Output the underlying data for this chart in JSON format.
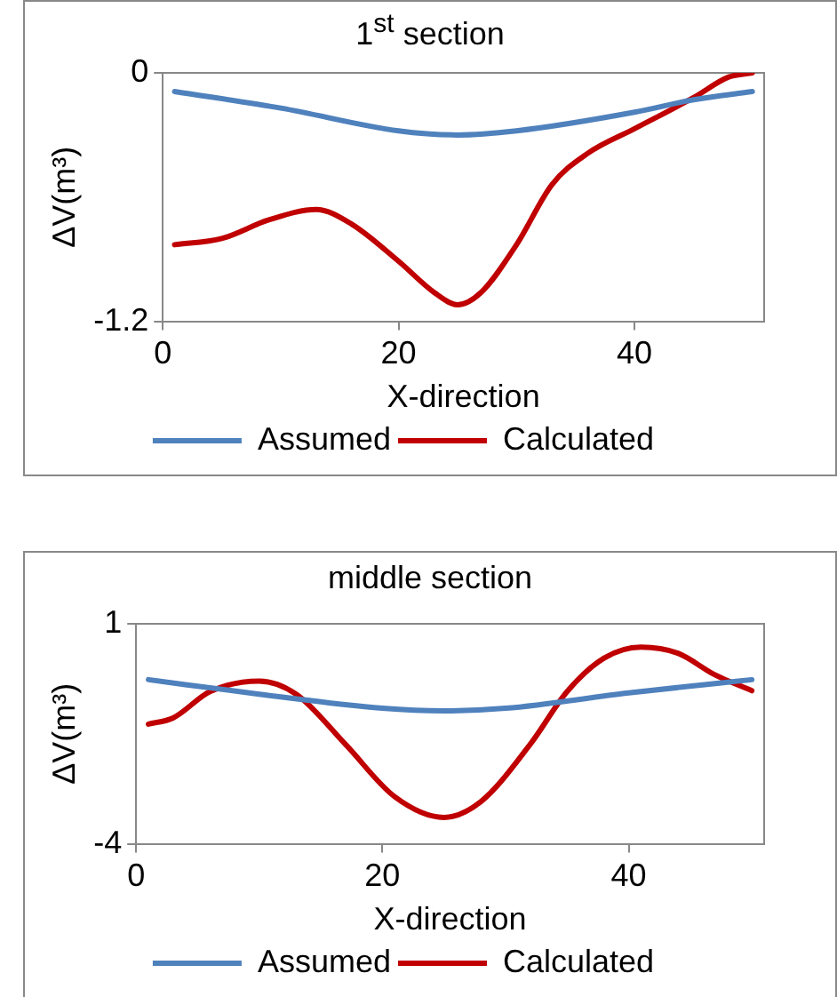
{
  "chart_data": [
    {
      "type": "line",
      "title": "1$^{st}$ section",
      "xlabel": "X-direction",
      "ylabel": "ΔV(m³)",
      "xlim": [
        0,
        51
      ],
      "xticks": [
        0,
        20,
        40
      ],
      "ylim": [
        -1.2,
        0
      ],
      "yticks": [
        -1.2,
        0
      ],
      "grid": false,
      "legend": "bottom",
      "marker": "none",
      "line_style": "solid",
      "series": [
        {
          "name": "Assumed",
          "color": "#4f81bd",
          "x": [
            1,
            10,
            20,
            25,
            30,
            40,
            45,
            50
          ],
          "values": [
            -0.09,
            -0.17,
            -0.28,
            -0.3,
            -0.28,
            -0.19,
            -0.13,
            -0.09
          ]
        },
        {
          "name": "Calculated",
          "color": "#c00000",
          "x": [
            1,
            5,
            9,
            13,
            16,
            20,
            23,
            25,
            27,
            30,
            33,
            36,
            40,
            45,
            48,
            50
          ],
          "values": [
            -0.83,
            -0.8,
            -0.71,
            -0.66,
            -0.73,
            -0.91,
            -1.06,
            -1.12,
            -1.06,
            -0.83,
            -0.54,
            -0.39,
            -0.27,
            -0.12,
            -0.02,
            0
          ]
        }
      ]
    },
    {
      "type": "line",
      "title": "middle section",
      "xlabel": "X-direction",
      "ylabel": "ΔV(m³)",
      "xlim": [
        0,
        51
      ],
      "xticks": [
        0,
        20,
        40
      ],
      "ylim": [
        -4,
        1
      ],
      "yticks": [
        -4,
        1
      ],
      "grid": false,
      "legend": "bottom",
      "marker": "none",
      "line_style": "solid",
      "series": [
        {
          "name": "Assumed",
          "color": "#4f81bd",
          "x": [
            1,
            10,
            20,
            25,
            30,
            40,
            50
          ],
          "values": [
            -0.27,
            -0.6,
            -0.92,
            -0.98,
            -0.92,
            -0.57,
            -0.27
          ]
        },
        {
          "name": "Calculated",
          "color": "#c00000",
          "x": [
            1,
            3,
            6,
            10,
            13,
            17,
            21,
            25,
            28,
            32,
            35,
            38,
            41,
            44,
            47,
            50
          ],
          "values": [
            -1.28,
            -1.14,
            -0.54,
            -0.3,
            -0.6,
            -1.74,
            -2.93,
            -3.4,
            -3.04,
            -1.74,
            -0.54,
            0.22,
            0.47,
            0.33,
            -0.16,
            -0.52
          ]
        }
      ]
    }
  ]
}
